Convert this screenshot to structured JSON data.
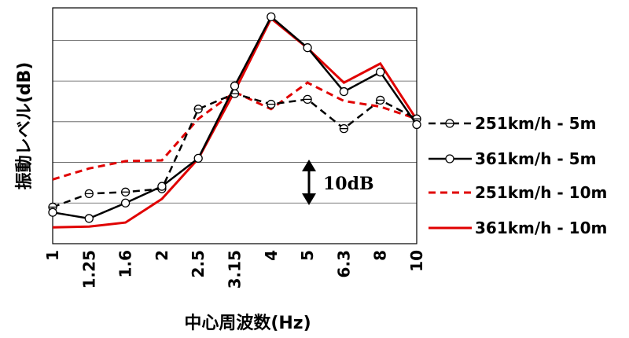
{
  "chart_data": {
    "type": "line",
    "categories": [
      "1",
      "1.25",
      "1.6",
      "2",
      "2.5",
      "3.15",
      "4",
      "5",
      "6.3",
      "8",
      "10"
    ],
    "xlabel": "中心周波数(Hz)",
    "ylabel": "振動レベル(dB)",
    "ylim": [
      0,
      58
    ],
    "grid": true,
    "legend_position": "right",
    "scale_annotation": "10dB",
    "series": [
      {
        "name": "251km/h - 5m",
        "color": "#000000",
        "style": "dashed",
        "marker": "circle-dash",
        "values": [
          9.0,
          12.3,
          12.7,
          13.5,
          33.1,
          36.9,
          34.3,
          35.5,
          28.3,
          35.3,
          30.7
        ]
      },
      {
        "name": "361km/h - 5m",
        "color": "#000000",
        "style": "solid",
        "marker": "circle",
        "values": [
          7.7,
          6.2,
          10.0,
          14.1,
          21.0,
          38.8,
          55.8,
          48.2,
          37.4,
          42.2,
          29.3
        ]
      },
      {
        "name": "251km/h - 10m",
        "color": "#e00000",
        "style": "dashed",
        "marker": "none",
        "values": [
          15.8,
          18.5,
          20.3,
          20.5,
          30.7,
          37.3,
          33.1,
          39.6,
          35.1,
          33.7,
          30.7
        ]
      },
      {
        "name": "361km/h - 10m",
        "color": "#e00000",
        "style": "solid",
        "marker": "none",
        "values": [
          4.0,
          4.2,
          5.2,
          11.0,
          20.9,
          37.5,
          55.4,
          48.1,
          39.6,
          44.3,
          30.5
        ]
      }
    ]
  }
}
